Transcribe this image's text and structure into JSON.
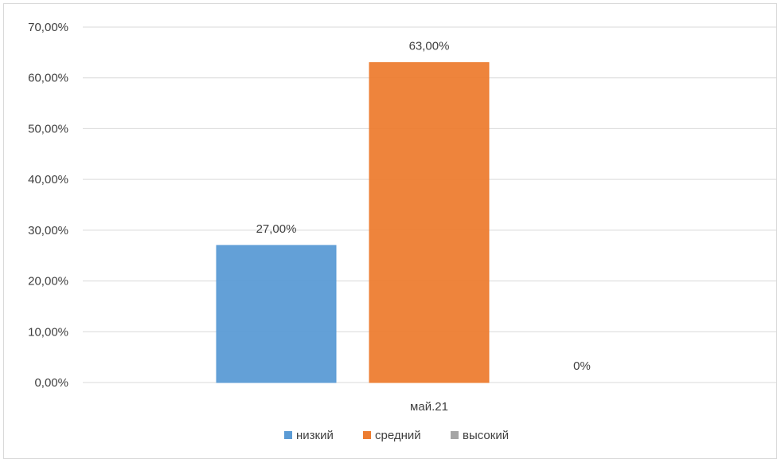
{
  "chart_data": {
    "type": "bar",
    "categories": [
      "май.21"
    ],
    "series": [
      {
        "name": "низкий",
        "values": [
          0.27
        ],
        "label": "27,00%",
        "color": "#5b9bd5"
      },
      {
        "name": "средний",
        "values": [
          0.63
        ],
        "label": "63,00%",
        "color": "#ed7d31"
      },
      {
        "name": "высокий",
        "values": [
          0
        ],
        "label": "0%",
        "color": "#a5a5a5"
      }
    ],
    "ylim": [
      0,
      0.7
    ],
    "y_ticks": [
      "0,00%",
      "10,00%",
      "20,00%",
      "30,00%",
      "40,00%",
      "50,00%",
      "60,00%",
      "70,00%"
    ],
    "y_tick_values": [
      0,
      0.1,
      0.2,
      0.3,
      0.4,
      0.5,
      0.6,
      0.7
    ],
    "grid": true,
    "legend_position": "bottom"
  }
}
